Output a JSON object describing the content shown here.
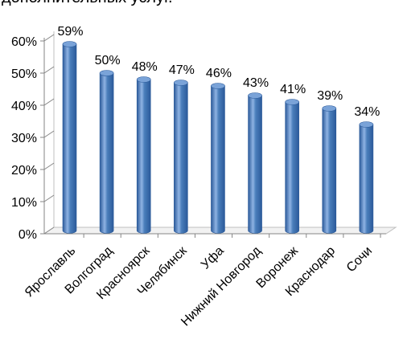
{
  "chart_data": {
    "type": "bar",
    "title": "дополнительных услуг.",
    "categories": [
      "Ярославль",
      "Волгоград",
      "Красноярск",
      "Челябинск",
      "Уфа",
      "Нижний Новгород",
      "Воронеж",
      "Краснодар",
      "Сочи"
    ],
    "values": [
      59,
      50,
      48,
      47,
      46,
      43,
      41,
      39,
      34
    ],
    "data_labels": [
      "59%",
      "50%",
      "48%",
      "47%",
      "46%",
      "43%",
      "41%",
      "39%",
      "34%"
    ],
    "y_ticks": [
      "0%",
      "10%",
      "20%",
      "30%",
      "40%",
      "50%",
      "60%"
    ],
    "ylim": [
      0,
      60
    ],
    "grid": false,
    "legend": "none",
    "bar_style": "3d-cylinder",
    "colors": {
      "bar_main": "#4a7ebb",
      "bar_light": "#8fb3e3",
      "bar_dark": "#2b5a9a",
      "bar_top": "#7aa3d8",
      "axis": "#868686",
      "floor": "#bfbfbf"
    }
  }
}
